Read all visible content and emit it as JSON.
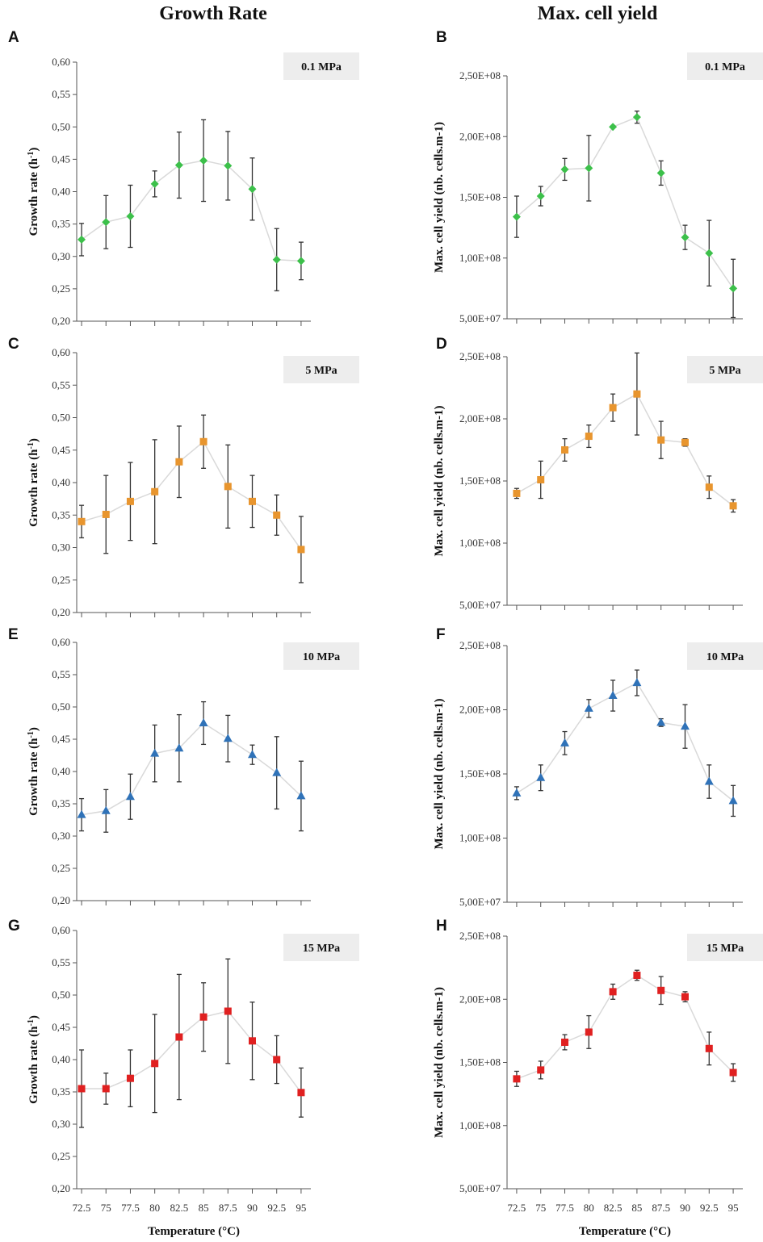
{
  "titles": {
    "left": "Growth Rate",
    "right": "Max. cell yield"
  },
  "xlabel": "Temperature (°C)",
  "colors": {
    "green": "#3cc04a",
    "orange": "#e8952e",
    "blue": "#2f72b8",
    "red": "#e02020",
    "line": "#d9d9d9",
    "errorbar": "#333333",
    "axis": "#555555",
    "label_box": "#ededed"
  },
  "chart_data": [
    {
      "type": "line",
      "panel": "A",
      "pressure": "0.1 MPa",
      "marker": "diamond",
      "color": "#3cc04a",
      "ylabel": "Growth rate (h-1)",
      "ylim": [
        0.2,
        0.6
      ],
      "yticks": [
        "0,20",
        "0,25",
        "0,30",
        "0,35",
        "0,40",
        "0,45",
        "0,50",
        "0,55",
        "0,60"
      ],
      "xlim": [
        72,
        96
      ],
      "x": [
        72.5,
        75,
        77.5,
        80,
        82.5,
        85,
        87.5,
        90,
        92.5,
        95
      ],
      "y": [
        0.326,
        0.353,
        0.362,
        0.412,
        0.441,
        0.448,
        0.44,
        0.404,
        0.295,
        0.293
      ],
      "err": [
        0.025,
        0.041,
        0.048,
        0.02,
        0.051,
        0.063,
        0.053,
        0.048,
        0.048,
        0.029
      ],
      "xticks_shown": false
    },
    {
      "type": "line",
      "panel": "B",
      "pressure": "0.1 MPa",
      "marker": "diamond",
      "color": "#3cc04a",
      "ylabel": "Max. cell yield (nb. cells.m-1)",
      "ylim": [
        50000000,
        250000000
      ],
      "yticks": [
        "5,00E+07",
        "1,00E+08",
        "1,50E+08",
        "2,00E+08",
        "2,50E+08"
      ],
      "xlim": [
        71.5,
        96
      ],
      "x": [
        72.5,
        75,
        77.5,
        80,
        82.5,
        85,
        87.5,
        90,
        92.5,
        95
      ],
      "y": [
        134000000,
        151000000,
        173000000,
        174000000,
        208000000,
        216000000,
        170000000,
        117000000,
        104000000,
        75000000
      ],
      "err": [
        17000000,
        8000000,
        9000000,
        27000000,
        0,
        5000000,
        10000000,
        10000000,
        27000000,
        24000000
      ],
      "xticks_shown": false
    },
    {
      "type": "line",
      "panel": "C",
      "pressure": "5 MPa",
      "marker": "square",
      "color": "#e8952e",
      "ylabel": "Growth rate (h-1)",
      "ylim": [
        0.2,
        0.6
      ],
      "yticks": [
        "0,20",
        "0,25",
        "0,30",
        "0,35",
        "0,40",
        "0,45",
        "0,50",
        "0,55",
        "0,60"
      ],
      "xlim": [
        72,
        96
      ],
      "x": [
        72.5,
        75,
        77.5,
        80,
        82.5,
        85,
        87.5,
        90,
        92.5,
        95
      ],
      "y": [
        0.34,
        0.351,
        0.371,
        0.386,
        0.432,
        0.463,
        0.394,
        0.371,
        0.35,
        0.297
      ],
      "err": [
        0.025,
        0.06,
        0.06,
        0.08,
        0.055,
        0.041,
        0.064,
        0.04,
        0.031,
        0.051
      ],
      "xticks_shown": false
    },
    {
      "type": "line",
      "panel": "D",
      "pressure": "5 MPa",
      "marker": "square",
      "color": "#e8952e",
      "ylabel": "Max. cell yield (nb. cells.m-1)",
      "ylim": [
        50000000,
        250000000
      ],
      "yticks": [
        "5,00E+07",
        "1,00E+08",
        "1,50E+08",
        "2,00E+08",
        "2,50E+08"
      ],
      "xlim": [
        71.5,
        96
      ],
      "x": [
        72.5,
        75,
        77.5,
        80,
        82.5,
        85,
        87.5,
        90,
        92.5,
        95
      ],
      "y": [
        140000000,
        151000000,
        175000000,
        186000000,
        209000000,
        220000000,
        183000000,
        181000000,
        145000000,
        130000000
      ],
      "err": [
        4000000,
        15000000,
        9000000,
        9000000,
        11000000,
        33000000,
        15000000,
        3000000,
        9000000,
        5000000
      ],
      "xticks_shown": false
    },
    {
      "type": "line",
      "panel": "E",
      "pressure": "10 MPa",
      "marker": "triangle",
      "color": "#2f72b8",
      "ylabel": "Growth rate (h-1)",
      "ylim": [
        0.2,
        0.6
      ],
      "yticks": [
        "0,20",
        "0,25",
        "0,30",
        "0,35",
        "0,40",
        "0,45",
        "0,50",
        "0,55",
        "0,60"
      ],
      "xlim": [
        72,
        96
      ],
      "x": [
        72.5,
        75,
        77.5,
        80,
        82.5,
        85,
        87.5,
        90,
        92.5,
        95
      ],
      "y": [
        0.333,
        0.339,
        0.361,
        0.428,
        0.436,
        0.475,
        0.451,
        0.426,
        0.398,
        0.362
      ],
      "err": [
        0.025,
        0.033,
        0.035,
        0.044,
        0.052,
        0.033,
        0.036,
        0.015,
        0.056,
        0.054
      ],
      "xticks_shown": false
    },
    {
      "type": "line",
      "panel": "F",
      "pressure": "10 MPa",
      "marker": "triangle",
      "color": "#2f72b8",
      "ylabel": "Max. cell yield (nb. cells.m-1)",
      "ylim": [
        50000000,
        250000000
      ],
      "yticks": [
        "5,00E+07",
        "1,00E+08",
        "1,50E+08",
        "2,00E+08",
        "2,50E+08"
      ],
      "xlim": [
        71.5,
        96
      ],
      "x": [
        72.5,
        75,
        77.5,
        80,
        82.5,
        85,
        87.5,
        90,
        92.5,
        95
      ],
      "y": [
        135000000,
        147000000,
        174000000,
        201000000,
        211000000,
        221000000,
        190000000,
        187000000,
        144000000,
        129000000
      ],
      "err": [
        5000000,
        10000000,
        9000000,
        7000000,
        12000000,
        10000000,
        3000000,
        17000000,
        13000000,
        12000000
      ],
      "xticks_shown": false
    },
    {
      "type": "line",
      "panel": "G",
      "pressure": "15 MPa",
      "marker": "square",
      "color": "#e02020",
      "ylabel": "Growth rate (h-1)",
      "ylim": [
        0.2,
        0.6
      ],
      "yticks": [
        "0,20",
        "0,25",
        "0,30",
        "0,35",
        "0,40",
        "0,45",
        "0,50",
        "0,55",
        "0,60"
      ],
      "xlim": [
        72,
        96
      ],
      "x": [
        72.5,
        75,
        77.5,
        80,
        82.5,
        85,
        87.5,
        90,
        92.5,
        95
      ],
      "y": [
        0.355,
        0.355,
        0.371,
        0.394,
        0.435,
        0.466,
        0.475,
        0.429,
        0.4,
        0.349
      ],
      "err": [
        0.06,
        0.024,
        0.044,
        0.076,
        0.097,
        0.053,
        0.081,
        0.06,
        0.037,
        0.038
      ],
      "xticks": [
        "72.5",
        "75",
        "77.5",
        "80",
        "82.5",
        "85",
        "87.5",
        "90",
        "92.5",
        "95"
      ],
      "xticks_shown": true,
      "xlabel": "Temperature (°C)"
    },
    {
      "type": "line",
      "panel": "H",
      "pressure": "15 MPa",
      "marker": "square",
      "color": "#e02020",
      "ylabel": "Max. cell yield (nb. cells.m-1)",
      "ylim": [
        50000000,
        250000000
      ],
      "yticks": [
        "5,00E+07",
        "1,00E+08",
        "1,50E+08",
        "2,00E+08",
        "2,50E+08"
      ],
      "xlim": [
        71.5,
        96
      ],
      "x": [
        72.5,
        75,
        77.5,
        80,
        82.5,
        85,
        87.5,
        90,
        92.5,
        95
      ],
      "y": [
        137000000,
        144000000,
        166000000,
        174000000,
        206000000,
        219000000,
        207000000,
        202000000,
        161000000,
        142000000
      ],
      "err": [
        6000000,
        7000000,
        6000000,
        13000000,
        6000000,
        4000000,
        11000000,
        4000000,
        13000000,
        7000000
      ],
      "xticks": [
        "72.5",
        "75",
        "77.5",
        "80",
        "82.5",
        "85",
        "87.5",
        "90",
        "92.5",
        "95"
      ],
      "xticks_shown": true,
      "xlabel": "Temperature (°C)"
    }
  ]
}
